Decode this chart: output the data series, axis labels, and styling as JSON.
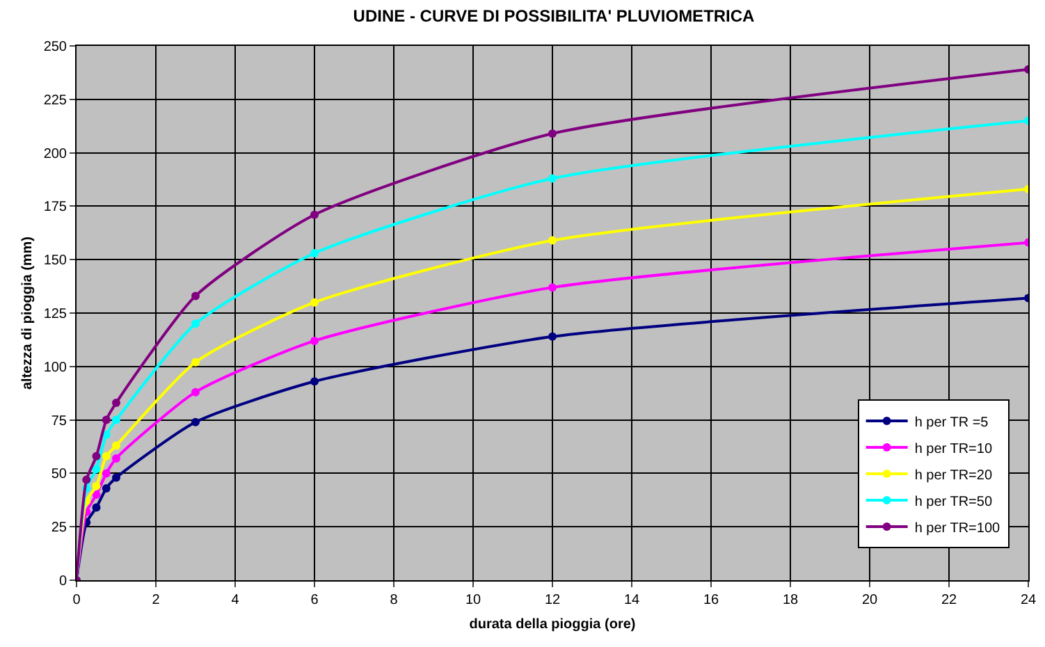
{
  "chart_data": {
    "type": "line",
    "title": "UDINE - CURVE DI POSSIBILITA' PLUVIOMETRICA",
    "xlabel": "durata della pioggia (ore)",
    "ylabel": "altezza di pioggia (mm)",
    "x": [
      0,
      0.25,
      0.5,
      0.75,
      1,
      3,
      6,
      12,
      24
    ],
    "series": [
      {
        "name": "h per TR =5",
        "color": "#000080",
        "values": [
          0,
          27,
          34,
          43,
          48,
          74,
          93,
          114,
          132
        ]
      },
      {
        "name": "h per TR=10",
        "color": "#ff00ff",
        "values": [
          0,
          32,
          40,
          50,
          57,
          88,
          112,
          137,
          158
        ]
      },
      {
        "name": "h per TR=20",
        "color": "#ffff00",
        "values": [
          0,
          37,
          44,
          58,
          63,
          102,
          130,
          159,
          183
        ]
      },
      {
        "name": "h per TR=50",
        "color": "#00ffff",
        "values": [
          0,
          43,
          52,
          68,
          75,
          120,
          153,
          188,
          215
        ]
      },
      {
        "name": "h per TR=100",
        "color": "#800080",
        "values": [
          0,
          47,
          58,
          75,
          83,
          133,
          171,
          209,
          239
        ]
      }
    ],
    "xlim": [
      0,
      24
    ],
    "xticks": [
      0,
      2,
      4,
      6,
      8,
      10,
      12,
      14,
      16,
      18,
      20,
      22,
      24
    ],
    "ylim": [
      0,
      250
    ],
    "yticks": [
      0,
      25,
      50,
      75,
      100,
      125,
      150,
      175,
      200,
      225,
      250
    ],
    "grid": true,
    "legend": "bottom right",
    "marker": "circle",
    "line_style": "solid"
  }
}
